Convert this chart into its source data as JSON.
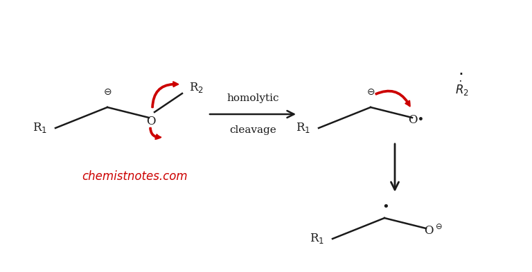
{
  "bg_color": "#ffffff",
  "text_color": "#1a1a1a",
  "red_color": "#cc0000",
  "watermark": "chemistnotes.com",
  "watermark_color": "#cc0000",
  "arrow_label_top": "homolytic",
  "arrow_label_bot": "cleavage",
  "figsize": [
    7.68,
    3.93
  ],
  "dpi": 100
}
